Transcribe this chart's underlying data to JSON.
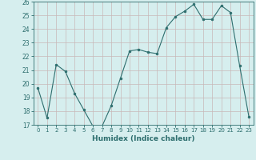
{
  "x": [
    0,
    1,
    2,
    3,
    4,
    5,
    6,
    7,
    8,
    9,
    10,
    11,
    12,
    13,
    14,
    15,
    16,
    17,
    18,
    19,
    20,
    21,
    22,
    23
  ],
  "y": [
    19.7,
    17.5,
    21.4,
    20.9,
    19.3,
    18.1,
    16.9,
    16.9,
    18.4,
    20.4,
    22.4,
    22.5,
    22.3,
    22.2,
    24.1,
    24.9,
    25.3,
    25.8,
    24.7,
    24.7,
    25.7,
    25.2,
    21.3,
    17.6
  ],
  "line_color": "#2d6e6e",
  "marker": "o",
  "marker_size": 2,
  "bg_color": "#d6eeee",
  "grid_color": "#b8d8d8",
  "xlabel": "Humidex (Indice chaleur)",
  "ylim": [
    17,
    26
  ],
  "xlim": [
    -0.5,
    23.5
  ],
  "yticks": [
    17,
    18,
    19,
    20,
    21,
    22,
    23,
    24,
    25,
    26
  ],
  "xticks": [
    0,
    1,
    2,
    3,
    4,
    5,
    6,
    7,
    8,
    9,
    10,
    11,
    12,
    13,
    14,
    15,
    16,
    17,
    18,
    19,
    20,
    21,
    22,
    23
  ],
  "tick_color": "#2d6e6e",
  "axis_color": "#2d6e6e",
  "line_width": 0.8
}
